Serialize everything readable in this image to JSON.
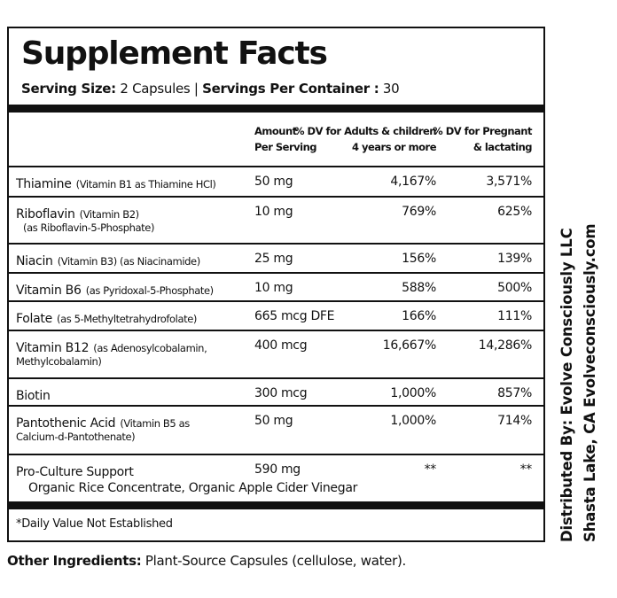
{
  "title": "Supplement Facts",
  "serving": {
    "size_label": "Serving Size:",
    "size": "2 Capsules",
    "separator": "|",
    "servings_label": "Servings Per Container :",
    "servings": "30"
  },
  "columns": [
    [
      "Amount",
      "Per Serving"
    ],
    [
      "% DV for Adults & children",
      "4 years or more"
    ],
    [
      "% DV for Pregnant",
      "& lactating"
    ]
  ],
  "rows": [
    {
      "name": "Thiamine",
      "note": "(Vitamin B1 as Thiamine HCl)",
      "amount": "50 mg",
      "dv_adult": "4,167%",
      "dv_pregnant": "3,571%"
    },
    {
      "name": "Riboflavin",
      "note": "(Vitamin B2)",
      "more": [
        "(as Riboflavin-5-Phosphate)"
      ],
      "amount": "10 mg",
      "dv_adult": "769%",
      "dv_pregnant": "625%"
    },
    {
      "name": "Niacin",
      "note": "(Vitamin B3) (as Niacinamide)",
      "amount": "25 mg",
      "dv_adult": "156%",
      "dv_pregnant": "139%"
    },
    {
      "name": "Vitamin B6",
      "note": "(as Pyridoxal-5-Phosphate)",
      "amount": "10 mg",
      "dv_adult": "588%",
      "dv_pregnant": "500%"
    },
    {
      "name": "Folate",
      "note": "(as 5-Methyltetrahydrofolate)",
      "amount": "665 mcg DFE",
      "dv_adult": "166%",
      "dv_pregnant": "111%"
    },
    {
      "name": "Vitamin B12",
      "note": "(as Adenosylcobalamin,",
      "more": [
        "Methylcobalamin)"
      ],
      "amount": "400 mcg",
      "dv_adult": "16,667%",
      "dv_pregnant": "14,286%"
    },
    {
      "name": "Biotin",
      "amount": "300 mcg",
      "dv_adult": "1,000%",
      "dv_pregnant": "857%"
    },
    {
      "name": "Pantothenic Acid",
      "note": "(Vitamin B5 as",
      "more": [
        "Calcium-d-Pantothenate)"
      ],
      "amount": "50 mg",
      "dv_adult": "1,000%",
      "dv_pregnant": "714%"
    },
    {
      "name": "Pro-Culture Support",
      "sub": [
        "Organic Rice Concentrate, Organic Apple Cider Vinegar"
      ],
      "amount": "590 mg",
      "dv_adult": "**",
      "dv_pregnant": "**"
    }
  ],
  "footnote": "*Daily Value Not Established",
  "other_ingredients": {
    "label": "Other Ingredients:",
    "text": "Plant-Source Capsules (cellulose, water)."
  },
  "distributor": [
    "Distributed By: Evolve Consciously LLC",
    "Shasta Lake, CA Evolveconsciously.com"
  ]
}
